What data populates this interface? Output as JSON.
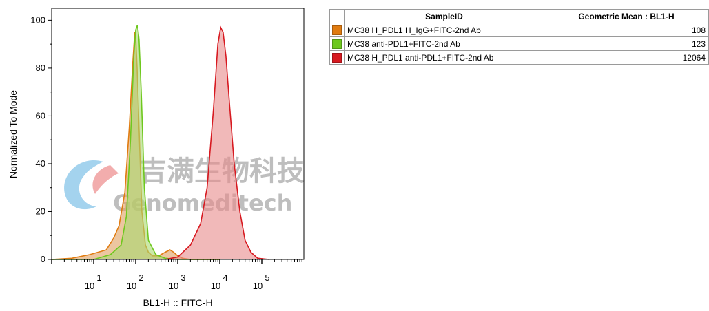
{
  "chart_data": {
    "type": "area",
    "xlabel": "BL1-H :: FITC-H",
    "ylabel": "Normalized To Mode",
    "xscale": "log",
    "xlim": [
      1,
      1000000
    ],
    "ylim": [
      0,
      105
    ],
    "y_ticks": [
      0,
      20,
      40,
      60,
      80,
      100
    ],
    "x_ticks": [
      {
        "value": 10,
        "base": "10",
        "exp": "1"
      },
      {
        "value": 100,
        "base": "10",
        "exp": "2"
      },
      {
        "value": 1000,
        "base": "10",
        "exp": "3"
      },
      {
        "value": 10000,
        "base": "10",
        "exp": "4"
      },
      {
        "value": 100000,
        "base": "10",
        "exp": "5"
      }
    ],
    "series": [
      {
        "name": "MC38 H_PDL1 H_IgG+FITC-2nd Ab",
        "color": "#e07b10",
        "fill": "#e0a060",
        "x": [
          1,
          3,
          8,
          20,
          30,
          40,
          55,
          70,
          85,
          95,
          100,
          108,
          120,
          140,
          170,
          200,
          250,
          350,
          500,
          650,
          800,
          1000,
          1300,
          2000,
          5000,
          10000
        ],
        "y": [
          0,
          0.5,
          2,
          4,
          9,
          14,
          28,
          55,
          82,
          95,
          93,
          80,
          55,
          20,
          6,
          3,
          1.5,
          1.5,
          3,
          4,
          3,
          1.5,
          0.5,
          0,
          0,
          0
        ]
      },
      {
        "name": "MC38 anti-PDL1+FITC-2nd Ab",
        "color": "#6ec81e",
        "fill": "#a8d870",
        "x": [
          1,
          10,
          25,
          45,
          60,
          75,
          90,
          100,
          110,
          120,
          135,
          160,
          200,
          300,
          500,
          1000,
          2000,
          10000
        ],
        "y": [
          0,
          0,
          2,
          6,
          18,
          50,
          85,
          96,
          98,
          92,
          70,
          30,
          8,
          2,
          0.5,
          0,
          0,
          0
        ]
      },
      {
        "name": "MC38 H_PDL1 anti-PDL1+FITC-2nd Ab",
        "color": "#d71920",
        "fill": "#e88a8a",
        "x": [
          500,
          1000,
          2000,
          3500,
          5000,
          7000,
          9000,
          10500,
          12000,
          14000,
          17000,
          22000,
          30000,
          40000,
          55000,
          80000,
          150000
        ],
        "y": [
          0,
          1,
          6,
          15,
          30,
          62,
          90,
          97,
          95,
          85,
          65,
          40,
          20,
          8,
          3,
          0.5,
          0
        ]
      }
    ]
  },
  "watermark": {
    "cn": "吉满生物科技",
    "en": "Genomeditech"
  },
  "table": {
    "headers": [
      "SampleID",
      "Geometric Mean : BL1-H"
    ],
    "rows": [
      {
        "color": "#e07b10",
        "sample": "MC38 H_PDL1 H_IgG+FITC-2nd Ab",
        "value": "108"
      },
      {
        "color": "#6ec81e",
        "sample": "MC38 anti-PDL1+FITC-2nd Ab",
        "value": "123"
      },
      {
        "color": "#d71920",
        "sample": "MC38 H_PDL1 anti-PDL1+FITC-2nd Ab",
        "value": "12064"
      }
    ]
  }
}
